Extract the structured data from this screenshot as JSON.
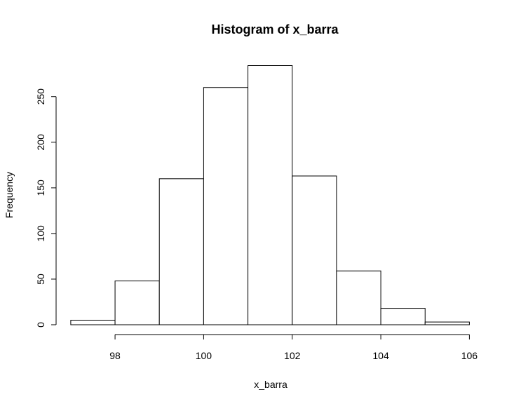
{
  "chart_data": {
    "type": "bar",
    "title": "Histogram of x_barra",
    "xlabel": "x_barra",
    "ylabel": "Frequency",
    "bins": [
      {
        "start": 97,
        "end": 98,
        "count": 5
      },
      {
        "start": 98,
        "end": 99,
        "count": 48
      },
      {
        "start": 99,
        "end": 100,
        "count": 160
      },
      {
        "start": 100,
        "end": 101,
        "count": 260
      },
      {
        "start": 101,
        "end": 102,
        "count": 284
      },
      {
        "start": 102,
        "end": 103,
        "count": 163
      },
      {
        "start": 103,
        "end": 104,
        "count": 59
      },
      {
        "start": 104,
        "end": 105,
        "count": 18
      },
      {
        "start": 105,
        "end": 106,
        "count": 3
      }
    ],
    "x_ticks": [
      "98",
      "100",
      "102",
      "104",
      "106"
    ],
    "y_ticks": [
      "0",
      "50",
      "100",
      "150",
      "200",
      "250"
    ],
    "xlim": [
      97,
      106
    ],
    "ylim": [
      0,
      284
    ],
    "grid": false,
    "colors": {
      "bar_fill": "#ffffff",
      "bar_stroke": "#000000"
    }
  }
}
